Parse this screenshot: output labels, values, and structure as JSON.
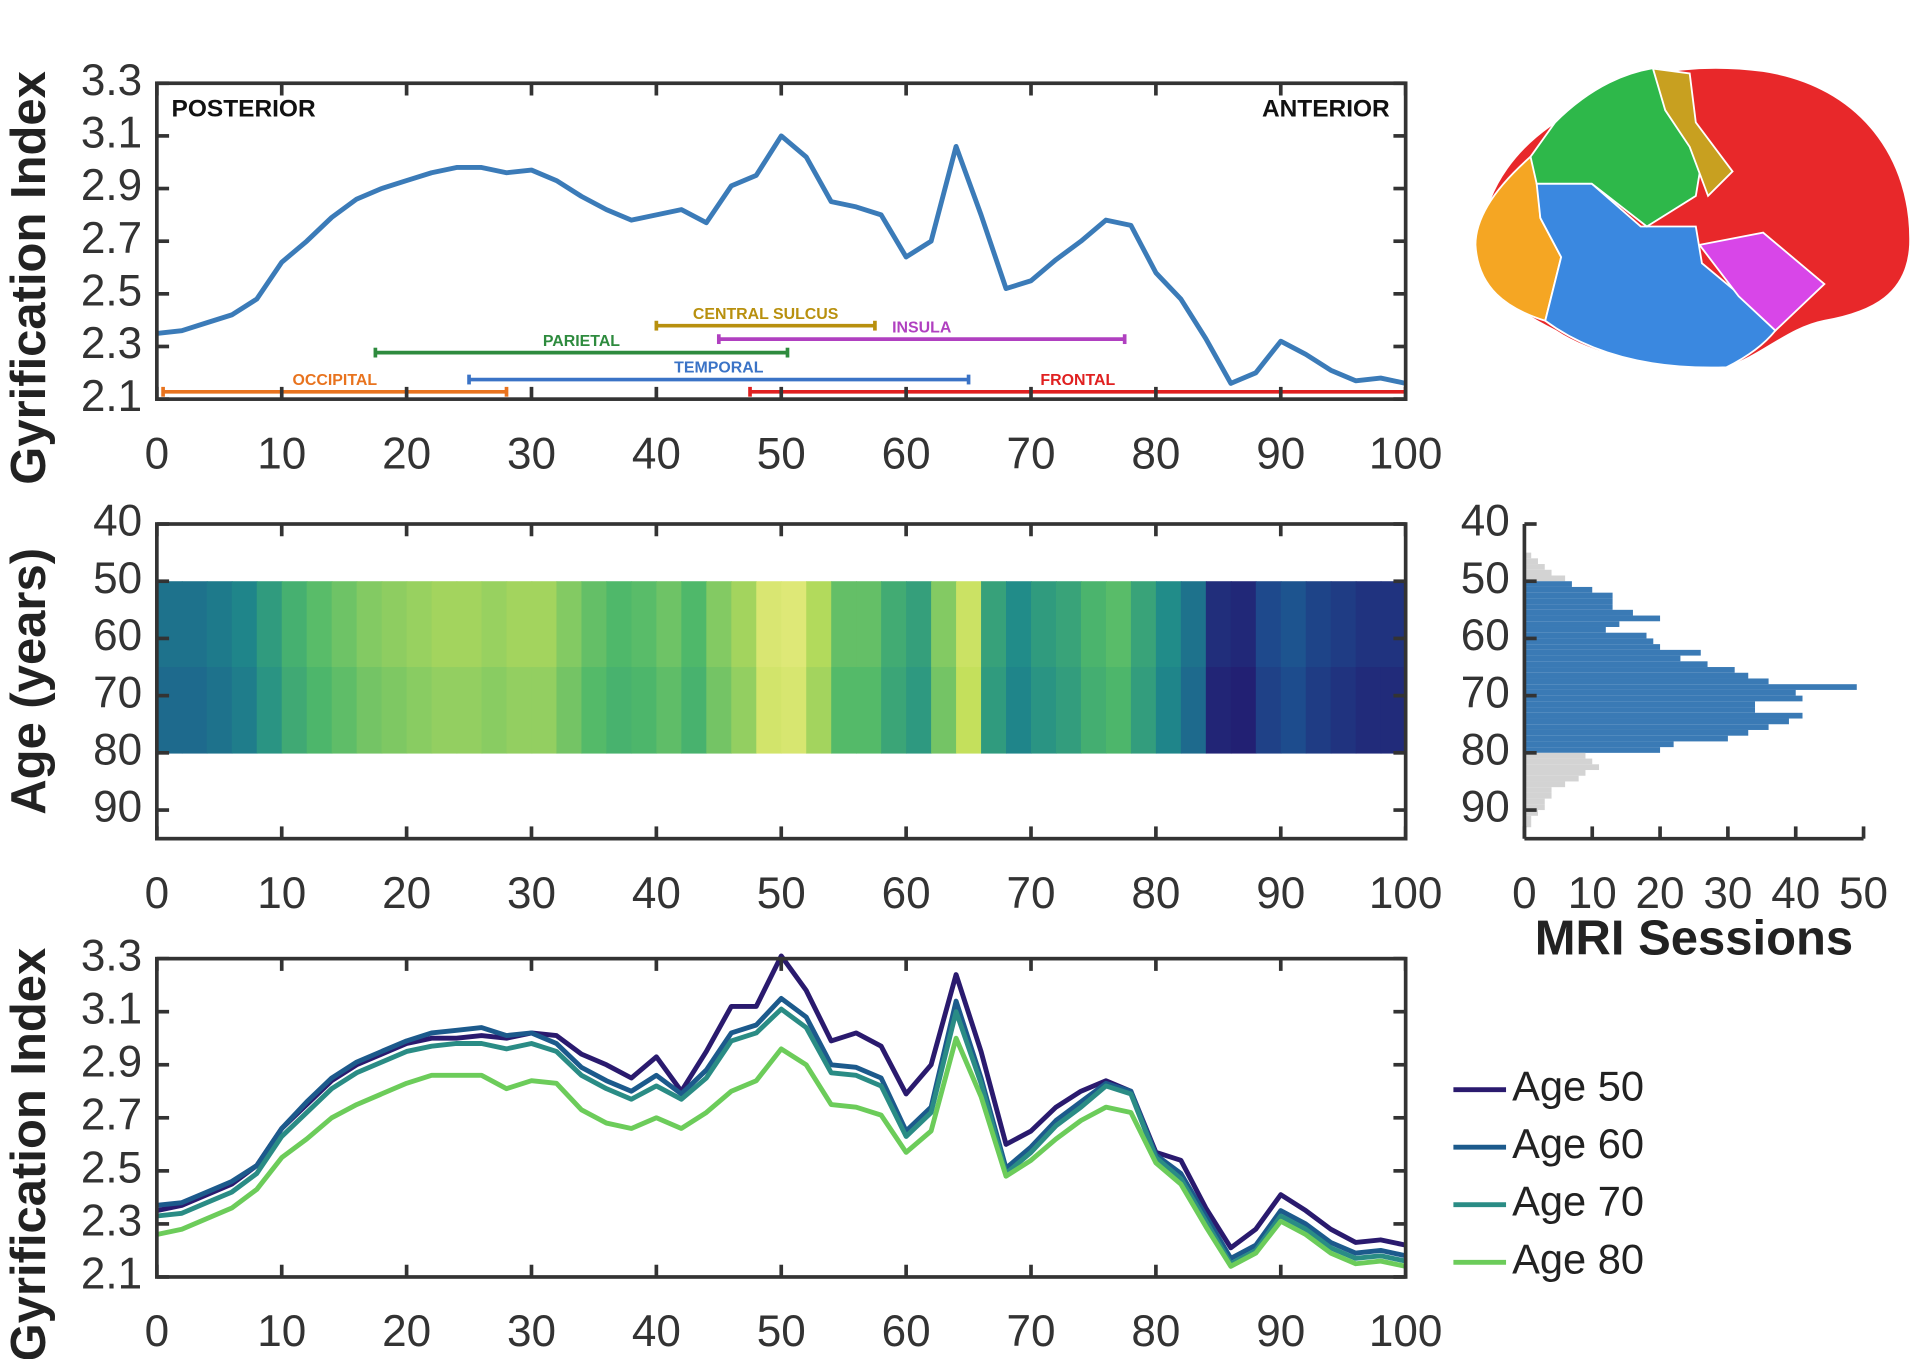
{
  "chart_data": [
    {
      "type": "line",
      "ylabel": "Gyrification Index",
      "annotations": [
        "POSTERIOR",
        "ANTERIOR"
      ],
      "x": [
        0,
        2,
        4,
        6,
        8,
        10,
        12,
        14,
        16,
        18,
        20,
        22,
        24,
        26,
        28,
        30,
        32,
        34,
        36,
        38,
        40,
        42,
        44,
        46,
        48,
        50,
        52,
        54,
        56,
        58,
        60,
        62,
        64,
        66,
        68,
        70,
        72,
        74,
        76,
        78,
        80,
        82,
        84,
        86,
        88,
        90,
        92,
        94,
        96,
        98,
        100
      ],
      "series": [
        {
          "color": "#3b7bb8",
          "values": [
            2.35,
            2.36,
            2.39,
            2.42,
            2.48,
            2.62,
            2.7,
            2.79,
            2.86,
            2.9,
            2.93,
            2.96,
            2.98,
            2.98,
            2.96,
            2.97,
            2.93,
            2.87,
            2.82,
            2.78,
            2.8,
            2.82,
            2.77,
            2.91,
            2.95,
            3.1,
            3.02,
            2.85,
            2.83,
            2.8,
            2.64,
            2.7,
            3.06,
            2.8,
            2.52,
            2.55,
            2.63,
            2.7,
            2.78,
            2.76,
            2.58,
            2.48,
            2.33,
            2.16,
            2.2,
            2.32,
            2.27,
            2.21,
            2.17,
            2.18,
            2.16
          ]
        }
      ],
      "intervals": [
        {
          "label": "OCCIPITAL",
          "start": 0.5,
          "end": 28,
          "color": "#e8731e"
        },
        {
          "label": "PARIETAL",
          "start": 17.5,
          "end": 50.5,
          "color": "#2e8b3e"
        },
        {
          "label": "TEMPORAL",
          "start": 25,
          "end": 65,
          "color": "#3a73c6"
        },
        {
          "label": "CENTRAL SULCUS",
          "start": 40,
          "end": 57.5,
          "color": "#b8900e"
        },
        {
          "label": "INSULA",
          "start": 45,
          "end": 77.5,
          "color": "#b040c0"
        },
        {
          "label": "FRONTAL",
          "start": 47.5,
          "end": 100,
          "color": "#e02020"
        }
      ],
      "xlim": [
        0,
        100
      ],
      "xticks": [
        0,
        10,
        20,
        30,
        40,
        50,
        60,
        70,
        80,
        90,
        100
      ],
      "ylim": [
        2.1,
        3.3
      ],
      "yticks": [
        2.1,
        2.3,
        2.5,
        2.7,
        2.9,
        3.1,
        3.3
      ]
    },
    {
      "type": "heatmap",
      "ylabel": "Age (years)",
      "xbins": [
        0,
        2,
        4,
        6,
        8,
        10,
        12,
        14,
        16,
        18,
        20,
        22,
        24,
        26,
        28,
        30,
        32,
        34,
        36,
        38,
        40,
        42,
        44,
        46,
        48,
        50,
        52,
        54,
        56,
        58,
        60,
        62,
        64,
        66,
        68,
        70,
        72,
        74,
        76,
        78,
        80,
        82,
        84,
        86,
        88,
        90,
        92,
        94,
        96,
        98,
        100
      ],
      "ybins": [
        50,
        65,
        80
      ],
      "values": [
        [
          2.45,
          2.45,
          2.48,
          2.52,
          2.62,
          2.72,
          2.78,
          2.82,
          2.86,
          2.88,
          2.9,
          2.92,
          2.92,
          2.9,
          2.92,
          2.92,
          2.86,
          2.8,
          2.76,
          2.78,
          2.82,
          2.76,
          2.86,
          2.92,
          3.08,
          3.1,
          2.95,
          2.8,
          2.8,
          2.7,
          2.64,
          2.86,
          3.02,
          2.65,
          2.55,
          2.62,
          2.66,
          2.74,
          2.78,
          2.66,
          2.55,
          2.45,
          2.2,
          2.18,
          2.3,
          2.34,
          2.28,
          2.25,
          2.22,
          2.22
        ],
        [
          2.42,
          2.42,
          2.45,
          2.49,
          2.59,
          2.69,
          2.75,
          2.79,
          2.83,
          2.85,
          2.87,
          2.89,
          2.89,
          2.87,
          2.89,
          2.89,
          2.83,
          2.77,
          2.73,
          2.75,
          2.79,
          2.73,
          2.83,
          2.89,
          3.05,
          3.07,
          2.92,
          2.77,
          2.77,
          2.67,
          2.61,
          2.83,
          2.99,
          2.62,
          2.52,
          2.59,
          2.63,
          2.71,
          2.75,
          2.63,
          2.52,
          2.42,
          2.17,
          2.15,
          2.27,
          2.31,
          2.25,
          2.22,
          2.19,
          2.19
        ]
      ],
      "clim": [
        2.1,
        3.2
      ],
      "colormap": [
        "#24126b",
        "#1d4f8f",
        "#1f8a8a",
        "#4fb86a",
        "#c2df5a",
        "#f5ef8f"
      ],
      "xlim": [
        0,
        100
      ],
      "xticks": [
        0,
        10,
        20,
        30,
        40,
        50,
        60,
        70,
        80,
        90,
        100
      ],
      "ylim": [
        40,
        95
      ],
      "yticks": [
        40,
        50,
        60,
        70,
        80,
        90
      ],
      "y_reverse": true
    },
    {
      "type": "histogram",
      "orientation": "horizontal",
      "xlabel": "MRI Sessions",
      "series": [
        {
          "color": "#d3d3d3",
          "bins": [
            45,
            46,
            47,
            48,
            49,
            50
          ],
          "values": [
            1,
            2,
            3,
            4,
            6
          ]
        },
        {
          "color": "#3a7ab5",
          "bins": [
            50,
            51,
            52,
            53,
            54,
            55,
            56,
            57,
            58,
            59,
            60,
            61,
            62,
            63,
            64,
            65,
            66,
            67,
            68,
            69,
            70,
            71,
            72,
            73,
            74,
            75,
            76,
            77,
            78,
            79,
            80
          ],
          "values": [
            7,
            10,
            13,
            13,
            13,
            16,
            20,
            14,
            12,
            18,
            19,
            20,
            26,
            23,
            27,
            31,
            33,
            36,
            49,
            40,
            41,
            34,
            34,
            41,
            39,
            36,
            33,
            30,
            22,
            20
          ]
        },
        {
          "color": "#d3d3d3",
          "bins": [
            80,
            81,
            82,
            83,
            84,
            85,
            86,
            87,
            88,
            89,
            90,
            91,
            92,
            93
          ],
          "values": [
            9,
            10,
            11,
            9,
            8,
            6,
            4,
            4,
            3,
            3,
            2,
            1,
            1
          ]
        }
      ],
      "xlim": [
        0,
        50
      ],
      "xticks": [
        0,
        10,
        20,
        30,
        40,
        50
      ],
      "ylim": [
        40,
        95
      ],
      "yticks": [
        40,
        50,
        60,
        70,
        80,
        90
      ],
      "y_reverse": true
    },
    {
      "type": "line",
      "ylabel": "Gyrification Index",
      "x": [
        0,
        2,
        4,
        6,
        8,
        10,
        12,
        14,
        16,
        18,
        20,
        22,
        24,
        26,
        28,
        30,
        32,
        34,
        36,
        38,
        40,
        42,
        44,
        46,
        48,
        50,
        52,
        54,
        56,
        58,
        60,
        62,
        64,
        66,
        68,
        70,
        72,
        74,
        76,
        78,
        80,
        82,
        84,
        86,
        88,
        90,
        92,
        94,
        96,
        98,
        100
      ],
      "series": [
        {
          "name": "Age 50",
          "color": "#2a1a6e",
          "values": [
            2.35,
            2.37,
            2.41,
            2.45,
            2.52,
            2.66,
            2.75,
            2.84,
            2.9,
            2.94,
            2.98,
            3.0,
            3.0,
            3.01,
            3.0,
            3.02,
            3.01,
            2.94,
            2.9,
            2.85,
            2.93,
            2.8,
            2.95,
            3.12,
            3.12,
            3.31,
            3.18,
            2.99,
            3.02,
            2.97,
            2.79,
            2.9,
            3.24,
            2.95,
            2.6,
            2.65,
            2.74,
            2.8,
            2.84,
            2.8,
            2.57,
            2.54,
            2.36,
            2.21,
            2.28,
            2.41,
            2.35,
            2.28,
            2.23,
            2.24,
            2.22
          ]
        },
        {
          "name": "Age 60",
          "color": "#1c5a8c",
          "values": [
            2.37,
            2.38,
            2.42,
            2.46,
            2.52,
            2.66,
            2.76,
            2.85,
            2.91,
            2.95,
            2.99,
            3.02,
            3.03,
            3.04,
            3.01,
            3.02,
            2.98,
            2.89,
            2.84,
            2.8,
            2.86,
            2.79,
            2.88,
            3.02,
            3.05,
            3.15,
            3.08,
            2.9,
            2.89,
            2.85,
            2.65,
            2.74,
            3.14,
            2.85,
            2.51,
            2.59,
            2.69,
            2.76,
            2.83,
            2.8,
            2.56,
            2.49,
            2.33,
            2.17,
            2.22,
            2.35,
            2.3,
            2.23,
            2.19,
            2.2,
            2.18
          ]
        },
        {
          "name": "Age 70",
          "color": "#2a8c85",
          "values": [
            2.33,
            2.34,
            2.38,
            2.42,
            2.49,
            2.63,
            2.72,
            2.81,
            2.87,
            2.91,
            2.95,
            2.97,
            2.98,
            2.98,
            2.96,
            2.98,
            2.95,
            2.86,
            2.81,
            2.77,
            2.82,
            2.77,
            2.85,
            2.99,
            3.02,
            3.11,
            3.04,
            2.87,
            2.86,
            2.82,
            2.63,
            2.72,
            3.1,
            2.83,
            2.49,
            2.57,
            2.67,
            2.74,
            2.82,
            2.79,
            2.55,
            2.47,
            2.31,
            2.15,
            2.2,
            2.33,
            2.28,
            2.21,
            2.17,
            2.18,
            2.16
          ]
        },
        {
          "name": "Age 80",
          "color": "#6ccc5a",
          "values": [
            2.26,
            2.28,
            2.32,
            2.36,
            2.43,
            2.55,
            2.62,
            2.7,
            2.75,
            2.79,
            2.83,
            2.86,
            2.86,
            2.86,
            2.81,
            2.84,
            2.83,
            2.73,
            2.68,
            2.66,
            2.7,
            2.66,
            2.72,
            2.8,
            2.84,
            2.96,
            2.9,
            2.75,
            2.74,
            2.71,
            2.57,
            2.65,
            3.0,
            2.78,
            2.48,
            2.54,
            2.62,
            2.69,
            2.74,
            2.72,
            2.53,
            2.45,
            2.29,
            2.14,
            2.19,
            2.31,
            2.26,
            2.19,
            2.15,
            2.16,
            2.14
          ]
        }
      ],
      "xlim": [
        0,
        100
      ],
      "xticks": [
        0,
        10,
        20,
        30,
        40,
        50,
        60,
        70,
        80,
        90,
        100
      ],
      "ylim": [
        2.1,
        3.3
      ],
      "yticks": [
        2.1,
        2.3,
        2.5,
        2.7,
        2.9,
        3.1,
        3.3
      ],
      "legend": "right"
    }
  ]
}
